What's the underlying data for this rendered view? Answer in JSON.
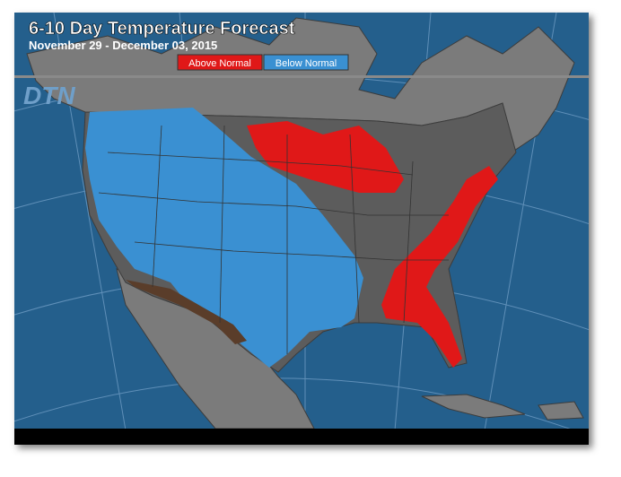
{
  "header": {
    "title": "6-10 Day Temperature Forecast",
    "subtitle": "November 29 - December 03, 2015",
    "logo": "DTN"
  },
  "legend": [
    {
      "label": "Above Normal",
      "color": "#e01818"
    },
    {
      "label": "Below Normal",
      "color": "#3a90d2"
    }
  ]
}
